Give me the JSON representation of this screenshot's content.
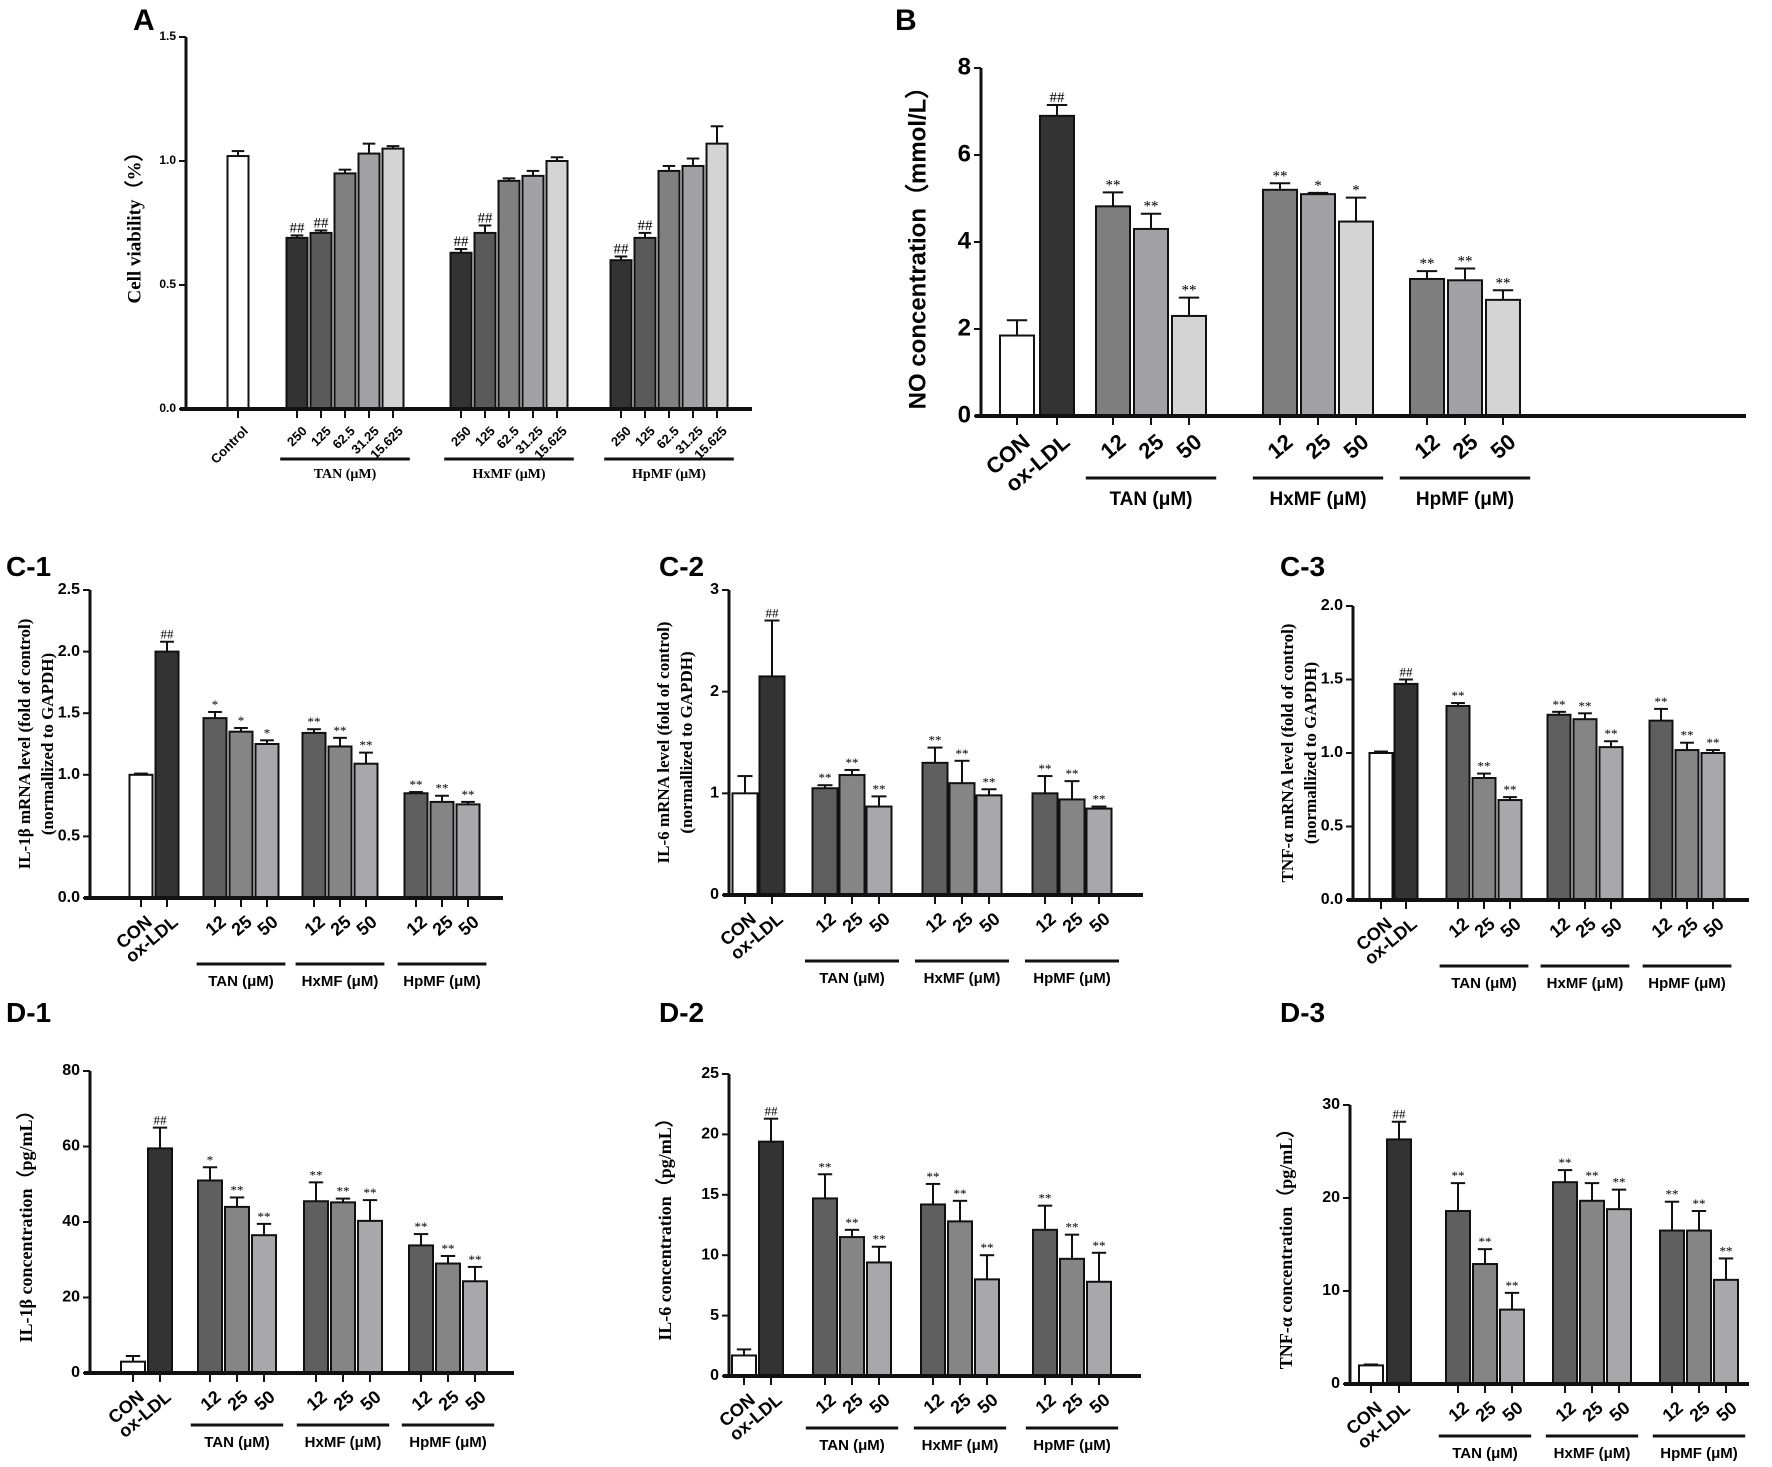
{
  "chart_data": [
    {
      "panel": "A",
      "type": "bar",
      "ylabel": [
        "Cell viability（%）"
      ],
      "ylim": [
        0,
        1.5
      ],
      "yticks": [
        "0.0",
        "0.5",
        "1.0",
        "1.5"
      ],
      "ytick_values": [
        0,
        0.5,
        1.0,
        1.5
      ],
      "categories": [
        "Control",
        "250",
        "125",
        "62.5",
        "31.25",
        "15.625",
        "250",
        "125",
        "62.5",
        "31.25",
        "15.625",
        "250",
        "125",
        "62.5",
        "31.25",
        "15.625"
      ],
      "values": [
        1.02,
        0.69,
        0.71,
        0.95,
        1.03,
        1.05,
        0.63,
        0.71,
        0.92,
        0.94,
        1.0,
        0.6,
        0.69,
        0.96,
        0.98,
        1.07
      ],
      "errors": [
        0.02,
        0.01,
        0.01,
        0.015,
        0.04,
        0.01,
        0.015,
        0.03,
        0.01,
        0.02,
        0.015,
        0.015,
        0.02,
        0.02,
        0.03,
        0.07
      ],
      "annotations": [
        "",
        "##",
        "##",
        "",
        "",
        "",
        "##",
        "##",
        "",
        "",
        "",
        "##",
        "##",
        "",
        "",
        ""
      ],
      "colors": [
        "#ffffff",
        "#333333",
        "#5a5a5a",
        "#808080",
        "#a2a2a6",
        "#d4d4d4",
        "#333333",
        "#5a5a5a",
        "#808080",
        "#a2a2a6",
        "#d4d4d4",
        "#333333",
        "#5a5a5a",
        "#808080",
        "#a2a2a6",
        "#d4d4d4"
      ],
      "groups": [
        {
          "name": "TAN (μM)",
          "members": [
            1,
            2,
            3,
            4,
            5
          ]
        },
        {
          "name": "HxMF (μM)",
          "members": [
            6,
            7,
            8,
            9,
            10
          ]
        },
        {
          "name": "HpMF (μM)",
          "members": [
            11,
            12,
            13,
            14,
            15
          ]
        }
      ]
    },
    {
      "panel": "B",
      "type": "bar",
      "ylabel": [
        "NO concentration（mmol/L）"
      ],
      "ylim": [
        0,
        8
      ],
      "yticks": [
        "0",
        "2",
        "4",
        "6",
        "8"
      ],
      "ytick_values": [
        0,
        2,
        4,
        6,
        8
      ],
      "categories": [
        "CON",
        "ox-LDL",
        "12",
        "25",
        "50",
        "12",
        "25",
        "50",
        "12",
        "25",
        "50"
      ],
      "values": [
        1.85,
        6.9,
        4.82,
        4.3,
        2.3,
        5.2,
        5.1,
        4.47,
        3.15,
        3.12,
        2.67
      ],
      "errors": [
        0.35,
        0.25,
        0.32,
        0.35,
        0.42,
        0.15,
        0.03,
        0.55,
        0.18,
        0.27,
        0.22
      ],
      "annotations": [
        "",
        "##",
        "**",
        "**",
        "**",
        "**",
        "*",
        "*",
        "**",
        "**",
        "**"
      ],
      "colors": [
        "#ffffff",
        "#333333",
        "#7f7f7f",
        "#a1a1a5",
        "#d4d4d4",
        "#7f7f7f",
        "#a1a1a5",
        "#d4d4d4",
        "#7f7f7f",
        "#a1a1a5",
        "#d4d4d4"
      ],
      "groups": [
        {
          "name": "TAN (μM)",
          "members": [
            2,
            3,
            4
          ]
        },
        {
          "name": "HxMF (μM)",
          "members": [
            5,
            6,
            7
          ]
        },
        {
          "name": "HpMF (μM)",
          "members": [
            8,
            9,
            10
          ]
        }
      ]
    },
    {
      "panel": "C-1",
      "type": "bar",
      "ylabel": [
        "IL-1β mRNA level (fold of control)",
        "(normallized to GAPDH)"
      ],
      "ylim": [
        0,
        2.5
      ],
      "yticks": [
        "0.0",
        "0.5",
        "1.0",
        "1.5",
        "2.0",
        "2.5"
      ],
      "ytick_values": [
        0,
        0.5,
        1.0,
        1.5,
        2.0,
        2.5
      ],
      "categories": [
        "CON",
        "ox-LDL",
        "12",
        "25",
        "50",
        "12",
        "25",
        "50",
        "12",
        "25",
        "50"
      ],
      "values": [
        1.0,
        2.0,
        1.46,
        1.35,
        1.25,
        1.34,
        1.23,
        1.09,
        0.85,
        0.78,
        0.76
      ],
      "errors": [
        0.01,
        0.08,
        0.05,
        0.03,
        0.03,
        0.03,
        0.07,
        0.09,
        0.01,
        0.05,
        0.02
      ],
      "annotations": [
        "",
        "##",
        "*",
        "*",
        "*",
        "**",
        "**",
        "**",
        "**",
        "**",
        "**"
      ],
      "colors": [
        "#ffffff",
        "#333333",
        "#5f5f5f",
        "#858585",
        "#a8a8ab",
        "#5f5f5f",
        "#858585",
        "#a8a8ab",
        "#5f5f5f",
        "#858585",
        "#a8a8ab"
      ],
      "groups": [
        {
          "name": "TAN (μM)",
          "members": [
            2,
            3,
            4
          ]
        },
        {
          "name": "HxMF (μM)",
          "members": [
            5,
            6,
            7
          ]
        },
        {
          "name": "HpMF (μM)",
          "members": [
            8,
            9,
            10
          ]
        }
      ]
    },
    {
      "panel": "C-2",
      "type": "bar",
      "ylabel": [
        "IL-6 mRNA level (fold of control)",
        "(normallized to GAPDH)"
      ],
      "ylim": [
        0,
        3
      ],
      "yticks": [
        "0",
        "1",
        "2",
        "3"
      ],
      "ytick_values": [
        0,
        1,
        2,
        3
      ],
      "categories": [
        "CON",
        "ox-LDL",
        "12",
        "25",
        "50",
        "12",
        "25",
        "50",
        "12",
        "25",
        "50"
      ],
      "values": [
        1.0,
        2.15,
        1.05,
        1.18,
        0.87,
        1.3,
        1.1,
        0.98,
        1.0,
        0.94,
        0.85
      ],
      "errors": [
        0.17,
        0.55,
        0.03,
        0.05,
        0.1,
        0.15,
        0.22,
        0.06,
        0.17,
        0.18,
        0.02
      ],
      "annotations": [
        "",
        "##",
        "**",
        "**",
        "**",
        "**",
        "**",
        "**",
        "**",
        "**",
        "**"
      ],
      "colors": [
        "#ffffff",
        "#333333",
        "#5f5f5f",
        "#858585",
        "#a8a8ab",
        "#5f5f5f",
        "#858585",
        "#a8a8ab",
        "#5f5f5f",
        "#858585",
        "#a8a8ab"
      ],
      "groups": [
        {
          "name": "TAN (μM)",
          "members": [
            2,
            3,
            4
          ]
        },
        {
          "name": "HxMF (μM)",
          "members": [
            5,
            6,
            7
          ]
        },
        {
          "name": "HpMF (μM)",
          "members": [
            8,
            9,
            10
          ]
        }
      ]
    },
    {
      "panel": "C-3",
      "type": "bar",
      "ylabel": [
        "TNF-α mRNA level (fold of control)",
        "(normallized to GAPDH)"
      ],
      "ylim": [
        0,
        2.0
      ],
      "yticks": [
        "0.0",
        "0.5",
        "1.0",
        "1.5",
        "2.0"
      ],
      "ytick_values": [
        0,
        0.5,
        1.0,
        1.5,
        2.0
      ],
      "categories": [
        "CON",
        "ox-LDL",
        "12",
        "25",
        "50",
        "12",
        "25",
        "50",
        "12",
        "25",
        "50"
      ],
      "values": [
        1.0,
        1.47,
        1.32,
        0.83,
        0.68,
        1.26,
        1.23,
        1.04,
        1.22,
        1.02,
        1.0
      ],
      "errors": [
        0.01,
        0.03,
        0.02,
        0.03,
        0.02,
        0.02,
        0.04,
        0.04,
        0.08,
        0.05,
        0.02
      ],
      "annotations": [
        "",
        "##",
        "**",
        "**",
        "**",
        "**",
        "**",
        "**",
        "**",
        "**",
        "**"
      ],
      "colors": [
        "#ffffff",
        "#333333",
        "#5f5f5f",
        "#858585",
        "#a8a8ab",
        "#5f5f5f",
        "#858585",
        "#a8a8ab",
        "#5f5f5f",
        "#858585",
        "#a8a8ab"
      ],
      "groups": [
        {
          "name": "TAN (μM)",
          "members": [
            2,
            3,
            4
          ]
        },
        {
          "name": "HxMF (μM)",
          "members": [
            5,
            6,
            7
          ]
        },
        {
          "name": "HpMF (μM)",
          "members": [
            8,
            9,
            10
          ]
        }
      ]
    },
    {
      "panel": "D-1",
      "type": "bar",
      "ylabel": [
        "IL-1β concentration（pg/mL）"
      ],
      "ylim": [
        0,
        80
      ],
      "yticks": [
        "0",
        "20",
        "40",
        "60",
        "80"
      ],
      "ytick_values": [
        0,
        20,
        40,
        60,
        80
      ],
      "categories": [
        "CON",
        "ox-LDL",
        "12",
        "25",
        "50",
        "12",
        "25",
        "50",
        "12",
        "25",
        "50"
      ],
      "values": [
        3.0,
        59.5,
        51.0,
        44.0,
        36.5,
        45.5,
        45.2,
        40.3,
        33.8,
        29.0,
        24.3
      ],
      "errors": [
        1.5,
        5.5,
        3.5,
        2.5,
        3.0,
        5.0,
        1.0,
        5.5,
        3.0,
        2.0,
        3.8
      ],
      "annotations": [
        "",
        "##",
        "*",
        "**",
        "**",
        "**",
        "**",
        "**",
        "**",
        "**",
        "**"
      ],
      "colors": [
        "#ffffff",
        "#333333",
        "#5f5f5f",
        "#858585",
        "#a8a8ab",
        "#5f5f5f",
        "#858585",
        "#a8a8ab",
        "#5f5f5f",
        "#858585",
        "#a8a8ab"
      ],
      "groups": [
        {
          "name": "TAN (μM)",
          "members": [
            2,
            3,
            4
          ]
        },
        {
          "name": "HxMF (μM)",
          "members": [
            5,
            6,
            7
          ]
        },
        {
          "name": "HpMF (μM)",
          "members": [
            8,
            9,
            10
          ]
        }
      ]
    },
    {
      "panel": "D-2",
      "type": "bar",
      "ylabel": [
        "IL-6 concentration（pg/mL）"
      ],
      "ylim": [
        0,
        25
      ],
      "yticks": [
        "0",
        "5",
        "10",
        "15",
        "20",
        "25"
      ],
      "ytick_values": [
        0,
        5,
        10,
        15,
        20,
        25
      ],
      "categories": [
        "CON",
        "ox-LDL",
        "12",
        "25",
        "50",
        "12",
        "25",
        "50",
        "12",
        "25",
        "50"
      ],
      "values": [
        1.7,
        19.4,
        14.7,
        11.5,
        9.4,
        14.2,
        12.8,
        8.0,
        12.1,
        9.7,
        7.8
      ],
      "errors": [
        0.5,
        1.9,
        2.0,
        0.6,
        1.3,
        1.7,
        1.7,
        2.0,
        2.0,
        2.0,
        2.4
      ],
      "annotations": [
        "",
        "##",
        "**",
        "**",
        "**",
        "**",
        "**",
        "**",
        "**",
        "**",
        "**"
      ],
      "colors": [
        "#ffffff",
        "#333333",
        "#5f5f5f",
        "#858585",
        "#a8a8ab",
        "#5f5f5f",
        "#858585",
        "#a8a8ab",
        "#5f5f5f",
        "#858585",
        "#a8a8ab"
      ],
      "groups": [
        {
          "name": "TAN (μM)",
          "members": [
            2,
            3,
            4
          ]
        },
        {
          "name": "HxMF (μM)",
          "members": [
            5,
            6,
            7
          ]
        },
        {
          "name": "HpMF (μM)",
          "members": [
            8,
            9,
            10
          ]
        }
      ]
    },
    {
      "panel": "D-3",
      "type": "bar",
      "ylabel": [
        "TNF-α concentration（pg/mL）"
      ],
      "ylim": [
        0,
        30
      ],
      "yticks": [
        "0",
        "10",
        "20",
        "30"
      ],
      "ytick_values": [
        0,
        10,
        20,
        30
      ],
      "categories": [
        "CON",
        "ox-LDL",
        "12",
        "25",
        "50",
        "12",
        "25",
        "50",
        "12",
        "25",
        "50"
      ],
      "values": [
        2.0,
        26.3,
        18.6,
        12.9,
        8.0,
        21.7,
        19.7,
        18.8,
        16.5,
        16.5,
        11.2
      ],
      "errors": [
        0.1,
        1.9,
        3.0,
        1.6,
        1.8,
        1.3,
        1.9,
        2.1,
        3.1,
        2.1,
        2.3
      ],
      "annotations": [
        "",
        "##",
        "**",
        "**",
        "**",
        "**",
        "**",
        "**",
        "**",
        "**",
        "**"
      ],
      "colors": [
        "#ffffff",
        "#333333",
        "#5f5f5f",
        "#858585",
        "#a8a8ab",
        "#5f5f5f",
        "#858585",
        "#a8a8ab",
        "#5f5f5f",
        "#858585",
        "#a8a8ab"
      ],
      "groups": [
        {
          "name": "TAN (μM)",
          "members": [
            2,
            3,
            4
          ]
        },
        {
          "name": "HxMF (μM)",
          "members": [
            5,
            6,
            7
          ]
        },
        {
          "name": "HpMF (μM)",
          "members": [
            8,
            9,
            10
          ]
        }
      ]
    }
  ]
}
